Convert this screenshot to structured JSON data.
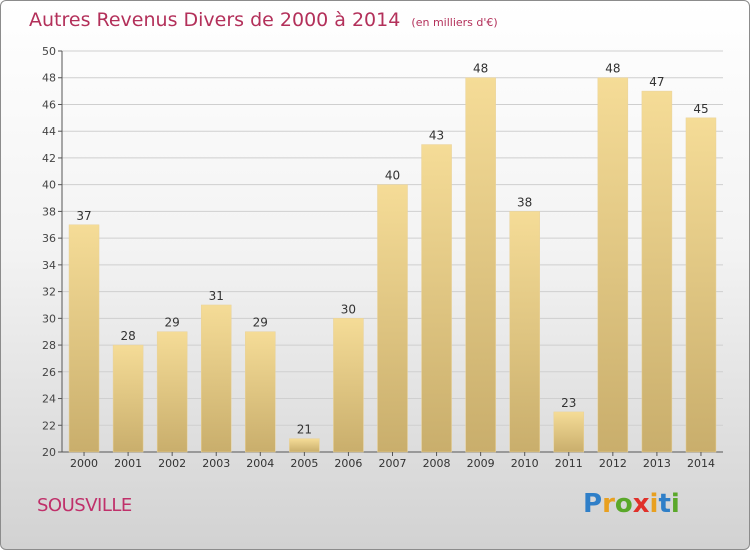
{
  "header": {
    "title": "Autres Revenus Divers de 2000 à 2014",
    "subtitle": "(en milliers d'€)"
  },
  "footer": {
    "city": "SOUSVILLE",
    "logo": "Proxiti"
  },
  "colors": {
    "title": "#b3305a",
    "bar_light": "#f5dc97",
    "bar_dark": "#c9ae6c"
  },
  "chart_data": {
    "type": "bar",
    "title": "Autres Revenus Divers de 2000 à 2014",
    "subtitle": "(en milliers d'€)",
    "xlabel": "",
    "ylabel": "",
    "categories": [
      "2000",
      "2001",
      "2002",
      "2003",
      "2004",
      "2005",
      "2006",
      "2007",
      "2008",
      "2009",
      "2010",
      "2011",
      "2012",
      "2013",
      "2014"
    ],
    "values": [
      37,
      28,
      29,
      31,
      29,
      21,
      30,
      40,
      43,
      48,
      38,
      23,
      48,
      47,
      45
    ],
    "ylim": [
      20,
      50
    ],
    "yticks": [
      20,
      22,
      24,
      26,
      28,
      30,
      32,
      34,
      36,
      38,
      40,
      42,
      44,
      46,
      48,
      50
    ],
    "grid": true,
    "legend": "none"
  }
}
